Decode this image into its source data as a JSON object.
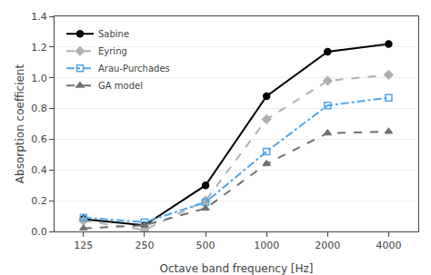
{
  "chart_data": {
    "type": "line",
    "x": [
      125,
      250,
      500,
      1000,
      2000,
      4000
    ],
    "xlabel": "Octave band frequency [Hz]",
    "ylabel": "Absorption coefficient",
    "log": "x",
    "xlim": [
      90,
      5600
    ],
    "xticks": [
      125,
      250,
      500,
      1000,
      2000,
      4000
    ],
    "ylim": [
      0,
      1.4
    ],
    "yticks": [
      {
        "value": 0,
        "label": "0.0"
      },
      0.2,
      0.4,
      0.6,
      0.8,
      {
        "value": 1.0,
        "label": "1.0"
      },
      1.2,
      1.4
    ],
    "grid": "y",
    "legend": "upper left",
    "series": [
      {
        "name": "Sabine",
        "color": "#000000",
        "line_style": "solid",
        "marker": "circle",
        "values": [
          0.08,
          0.04,
          0.3,
          0.88,
          1.17,
          1.22
        ]
      },
      {
        "name": "Eyring",
        "color": "#b0b0b0",
        "line_style": "dashed",
        "marker": "diamond",
        "values": [
          0.07,
          0.01,
          0.2,
          0.73,
          0.98,
          1.02
        ]
      },
      {
        "name": "Arau-Purchades",
        "color": "#4da6e8",
        "line_style": "dashdot",
        "marker": "square-open",
        "values": [
          0.09,
          0.06,
          0.19,
          0.52,
          0.82,
          0.87
        ]
      },
      {
        "name": "GA model",
        "color": "#707070",
        "line_style": "dashed",
        "marker": "triangle-up",
        "values": [
          0.02,
          0.04,
          0.15,
          0.44,
          0.64,
          0.65
        ]
      }
    ]
  }
}
